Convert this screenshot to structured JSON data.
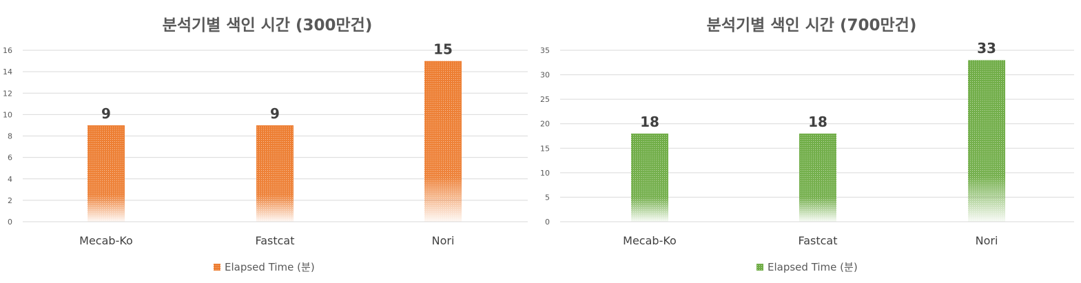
{
  "chart_data": [
    {
      "type": "bar",
      "title": "분석기별 색인 시간 (300만건)",
      "categories": [
        "Mecab-Ko",
        "Fastcat",
        "Nori"
      ],
      "series": [
        {
          "name": "Elapsed Time (분)",
          "values": [
            9,
            9,
            15
          ],
          "color": "#ED7D31"
        }
      ],
      "data_labels": [
        "9",
        "9",
        "15"
      ],
      "ylim": [
        0,
        16
      ],
      "yticks": [
        "0",
        "2",
        "4",
        "6",
        "8",
        "10",
        "12",
        "14",
        "16"
      ],
      "grid": true,
      "legend_position": "bottom"
    },
    {
      "type": "bar",
      "title": "분석기별 색인 시간 (700만건)",
      "categories": [
        "Mecab-Ko",
        "Fastcat",
        "Nori"
      ],
      "series": [
        {
          "name": "Elapsed Time (분)",
          "values": [
            18,
            18,
            33
          ],
          "color": "#70AD47"
        }
      ],
      "data_labels": [
        "18",
        "18",
        "33"
      ],
      "ylim": [
        0,
        35
      ],
      "yticks": [
        "0",
        "5",
        "10",
        "15",
        "20",
        "25",
        "30",
        "35"
      ],
      "grid": true,
      "legend_position": "bottom"
    }
  ]
}
